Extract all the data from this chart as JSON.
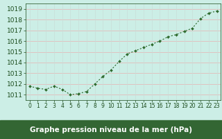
{
  "x": [
    0,
    1,
    2,
    3,
    4,
    5,
    6,
    7,
    8,
    9,
    10,
    11,
    12,
    13,
    14,
    15,
    16,
    17,
    18,
    19,
    20,
    21,
    22,
    23
  ],
  "y": [
    1011.8,
    1011.6,
    1011.5,
    1011.8,
    1011.5,
    1011.0,
    1011.1,
    1011.3,
    1012.0,
    1012.7,
    1013.3,
    1014.1,
    1014.8,
    1015.1,
    1015.4,
    1015.7,
    1016.0,
    1016.4,
    1016.6,
    1016.9,
    1017.2,
    1018.1,
    1018.6,
    1018.8
  ],
  "xlabel": "Graphe pression niveau de la mer (hPa)",
  "ylim": [
    1010.5,
    1019.5
  ],
  "xlim": [
    -0.5,
    23.5
  ],
  "yticks": [
    1011,
    1012,
    1013,
    1014,
    1015,
    1016,
    1017,
    1018,
    1019
  ],
  "xtick_labels": [
    "0",
    "1",
    "2",
    "3",
    "4",
    "5",
    "6",
    "7",
    "8",
    "9",
    "10",
    "11",
    "12",
    "13",
    "14",
    "15",
    "16",
    "17",
    "18",
    "19",
    "20",
    "21",
    "22",
    "23"
  ],
  "line_color": "#2d6a2d",
  "marker_color": "#2d6a2d",
  "bg_color": "#cceee6",
  "grid_color_h": "#e8b0b0",
  "grid_color_v": "#c8ddd8",
  "xlabel_text_color": "#1a4a1a",
  "xlabel_bg": "#336633",
  "tick_color": "#1a4a1a",
  "font_size_xlabel": 7.5,
  "font_size_ytick": 6.5,
  "font_size_xtick": 5.5
}
